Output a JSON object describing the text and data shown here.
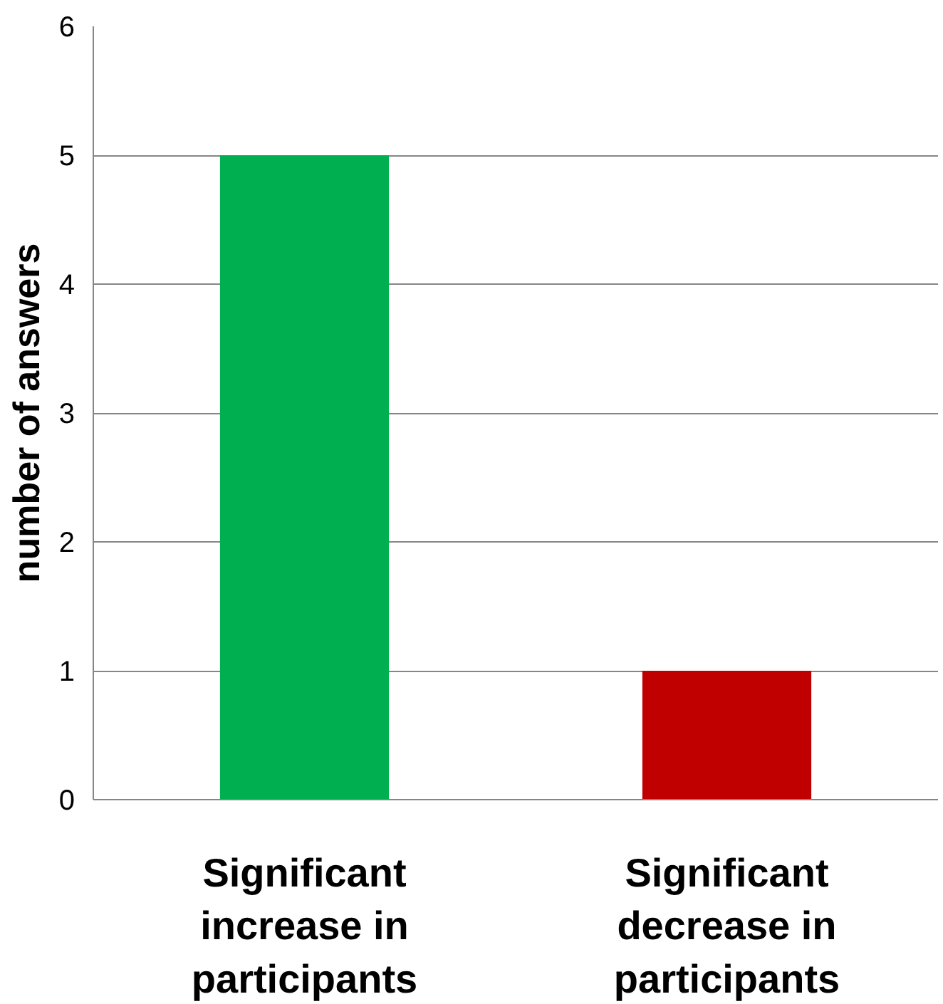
{
  "chart_data": {
    "type": "bar",
    "ylabel": "number of answers",
    "categories": [
      "Significant increase in participants",
      "Significant decrease in participants"
    ],
    "values": [
      5,
      1
    ],
    "colors": [
      "#00b050",
      "#c00000"
    ],
    "ylim": [
      0,
      6
    ],
    "yticks": [
      0,
      1,
      2,
      3,
      4,
      5,
      6
    ],
    "grid": "y"
  }
}
